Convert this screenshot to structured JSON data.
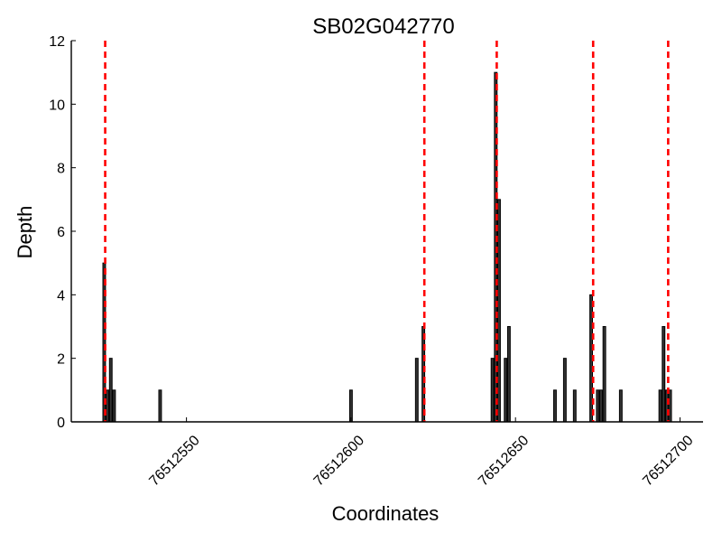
{
  "chart_data": {
    "type": "bar",
    "title": "SB02G042770",
    "xlabel": "Coordinates",
    "ylabel": "Depth",
    "xlim": [
      76512515,
      76512707
    ],
    "ylim": [
      0,
      12
    ],
    "grid": false,
    "y_ticks": [
      "0",
      "2",
      "4",
      "6",
      "8",
      "10",
      "12"
    ],
    "x_ticks": [
      {
        "value": 76512550,
        "label": "76512550"
      },
      {
        "value": 76512600,
        "label": "76512600"
      },
      {
        "value": 76512650,
        "label": "76512650"
      },
      {
        "value": 76512700,
        "label": "76512700"
      }
    ],
    "bars": [
      {
        "x": 76512525,
        "value": 5
      },
      {
        "x": 76512526,
        "value": 1
      },
      {
        "x": 76512527,
        "value": 2
      },
      {
        "x": 76512528,
        "value": 1
      },
      {
        "x": 76512542,
        "value": 1
      },
      {
        "x": 76512600,
        "value": 1
      },
      {
        "x": 76512620,
        "value": 2
      },
      {
        "x": 76512622,
        "value": 3
      },
      {
        "x": 76512643,
        "value": 2
      },
      {
        "x": 76512644,
        "value": 11
      },
      {
        "x": 76512645,
        "value": 7
      },
      {
        "x": 76512647,
        "value": 2
      },
      {
        "x": 76512648,
        "value": 3
      },
      {
        "x": 76512662,
        "value": 1
      },
      {
        "x": 76512665,
        "value": 2
      },
      {
        "x": 76512668,
        "value": 1
      },
      {
        "x": 76512673,
        "value": 4
      },
      {
        "x": 76512675,
        "value": 1
      },
      {
        "x": 76512676,
        "value": 1
      },
      {
        "x": 76512677,
        "value": 3
      },
      {
        "x": 76512682,
        "value": 1
      },
      {
        "x": 76512694,
        "value": 1
      },
      {
        "x": 76512695,
        "value": 3
      },
      {
        "x": 76512696,
        "value": 1
      },
      {
        "x": 76512697,
        "value": 1
      }
    ],
    "markers": [
      76512525.3,
      76512622.3,
      76512644.3,
      76512673.6,
      76512696.4
    ],
    "colors": {
      "bar_fill": "#333333",
      "bar_edge": "#000000",
      "marker": "#ff0000"
    }
  }
}
